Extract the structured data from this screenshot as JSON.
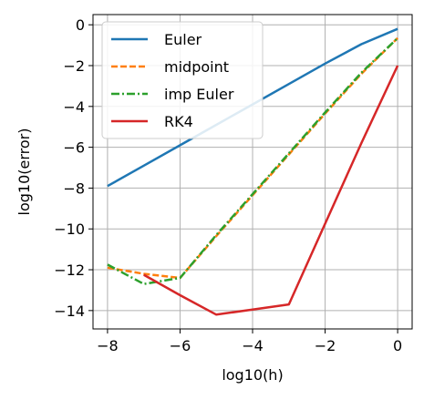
{
  "chart_data": {
    "type": "line",
    "title": "",
    "xlabel": "log10(h)",
    "ylabel": "log10(error)",
    "xlim": [
      -8.4,
      0.4
    ],
    "ylim": [
      -14.9,
      0.5
    ],
    "xticks": [
      -8,
      -6,
      -4,
      -2,
      0
    ],
    "yticks": [
      0,
      -2,
      -4,
      -6,
      -8,
      -10,
      -12,
      -14
    ],
    "xtick_labels": [
      "−8",
      "−6",
      "−4",
      "−2",
      "0"
    ],
    "ytick_labels": [
      "0",
      "−2",
      "−4",
      "−6",
      "−8",
      "−10",
      "−12",
      "−14"
    ],
    "grid": true,
    "legend_position": "top-left",
    "series": [
      {
        "name": "Euler",
        "color": "#1f77b4",
        "dash": "solid",
        "x": [
          -8,
          -7,
          -6,
          -5,
          -4,
          -3,
          -2,
          -1,
          0
        ],
        "y": [
          -7.9,
          -6.9,
          -5.9,
          -4.9,
          -3.9,
          -2.9,
          -1.9,
          -0.95,
          -0.2
        ]
      },
      {
        "name": "midpoint",
        "color": "#ff7f0e",
        "dash": "dashed",
        "x": [
          -8,
          -7,
          -6,
          -5,
          -4,
          -3,
          -2,
          -1,
          0
        ],
        "y": [
          -11.9,
          -12.2,
          -12.4,
          -10.35,
          -8.35,
          -6.35,
          -4.35,
          -2.4,
          -0.65
        ]
      },
      {
        "name": "imp Euler",
        "color": "#2ca02c",
        "dash": "dashdot",
        "x": [
          -8,
          -7,
          -6,
          -5,
          -4,
          -3,
          -2,
          -1,
          0
        ],
        "y": [
          -11.75,
          -12.7,
          -12.4,
          -10.3,
          -8.3,
          -6.3,
          -4.3,
          -2.35,
          -0.65
        ]
      },
      {
        "name": "RK4",
        "color": "#d62728",
        "dash": "solid",
        "x": [
          -7,
          -6,
          -5,
          -4,
          -3,
          -2,
          -1,
          0
        ],
        "y": [
          -12.25,
          -13.25,
          -14.2,
          -13.95,
          -13.7,
          -9.75,
          -5.8,
          -2.0
        ]
      }
    ]
  }
}
